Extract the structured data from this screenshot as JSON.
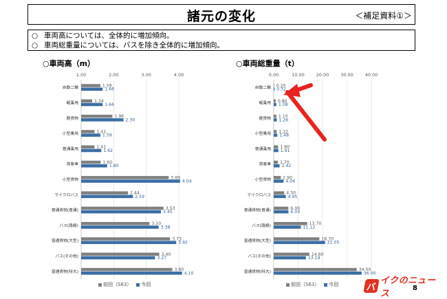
{
  "header": {
    "title": "諸元の変化",
    "note": "＜補足資料①＞"
  },
  "summary": {
    "lines": [
      {
        "mark": "○",
        "text": "車両高については、全体的に増加傾向。"
      },
      {
        "mark": "○",
        "text": "車両総重量については、バスを除き全体的に増加傾向。"
      }
    ]
  },
  "colors": {
    "previous": "#808080",
    "current": "#3a6ea5",
    "grid": "#d9d9d9",
    "arrow": "#e8231e"
  },
  "chart_data": [
    {
      "type": "bar",
      "orientation": "horizontal",
      "title": "○車両高（m）",
      "xlim": [
        1.0,
        4.0
      ],
      "ticks": [
        "1.00",
        "2.00",
        "3.00",
        "4.00"
      ],
      "tick_values": [
        1,
        2,
        3,
        4
      ],
      "grid": true,
      "legend": "bottom",
      "categories": [
        "自動二輪",
        "軽乗用",
        "軽貨物",
        "小型乗用",
        "普通乗用",
        "貨客車",
        "小型貨物",
        "マイクロバス",
        "普通貨物(普通)",
        "バス(路線)",
        "普通貨物(大型)",
        "バス(その他)",
        "普通貨物(特大)"
      ],
      "series": [
        {
          "name": "前回（S63）",
          "values": [
            1.59,
            1.34,
            1.96,
            1.41,
            1.41,
            1.6,
            3.69,
            2.44,
            3.53,
            3.1,
            3.73,
            3.4,
            3.8
          ],
          "labels": [
            "1.59",
            "1.34",
            "1.96",
            "1.41",
            "1.41",
            "1.60",
            "3.69",
            "2.44",
            "3.53",
            "3.10",
            "3.73",
            "3.40",
            "3.80"
          ]
        },
        {
          "name": "今回",
          "values": [
            1.66,
            1.66,
            2.3,
            1.59,
            1.62,
            1.8,
            4.04,
            2.59,
            3.45,
            3.38,
            3.92,
            3.27,
            4.1
          ],
          "labels": [
            "1.66",
            "1.66",
            "2.30",
            "1.59",
            "1.62",
            "1.80",
            "4.04",
            "2.59",
            "3.45",
            "3.38",
            "3.92",
            "3.27",
            "4.10"
          ]
        }
      ]
    },
    {
      "type": "bar",
      "orientation": "horizontal",
      "title": "○車両総重量（t）",
      "xlim": [
        0,
        40
      ],
      "ticks": [
        "0.00",
        "10.00",
        "20.00",
        "30.00",
        "40.00"
      ],
      "tick_values": [
        0,
        10,
        20,
        30,
        40
      ],
      "grid": true,
      "legend": "bottom",
      "categories": [
        "自動二輪",
        "軽乗用",
        "軽貨物",
        "小型乗用",
        "普通乗用",
        "貨客車",
        "小型貨物",
        "マイクロバス",
        "普通貨物(普通)",
        "バス(路線)",
        "普通貨物(大型)",
        "バス(その他)",
        "普通貨物(特大)"
      ],
      "series": [
        {
          "name": "前回（S63）",
          "values": [
            0.2,
            0.8,
            1.1,
            1.22,
            1.8,
            1.7,
            2.9,
            4.3,
            6.0,
            13.7,
            18.7,
            14.6,
            34.0
          ],
          "labels": [
            "0.20",
            "0.80",
            "1.10",
            "1.22",
            "1.80",
            "1.70",
            "2.90",
            "4.30",
            "6.00",
            "13.70",
            "18.70",
            "14.60",
            "34.00"
          ]
        },
        {
          "name": "今回",
          "values": [
            0.32,
            1.08,
            1.26,
            1.48,
            1.91,
            2.42,
            4.04,
            4.95,
            6.03,
            11.12,
            21.05,
            13.19,
            36.0
          ],
          "labels": [
            "0.32",
            "1.08",
            "1.26",
            "1.48",
            "1.91",
            "2.42",
            "4.04",
            "4.95",
            "6.03",
            "11.12",
            "21.05",
            "13.19",
            "36.00"
          ]
        }
      ]
    }
  ],
  "page_number": "8",
  "watermark": {
    "logo": "バ",
    "text": "イクのニュース"
  }
}
